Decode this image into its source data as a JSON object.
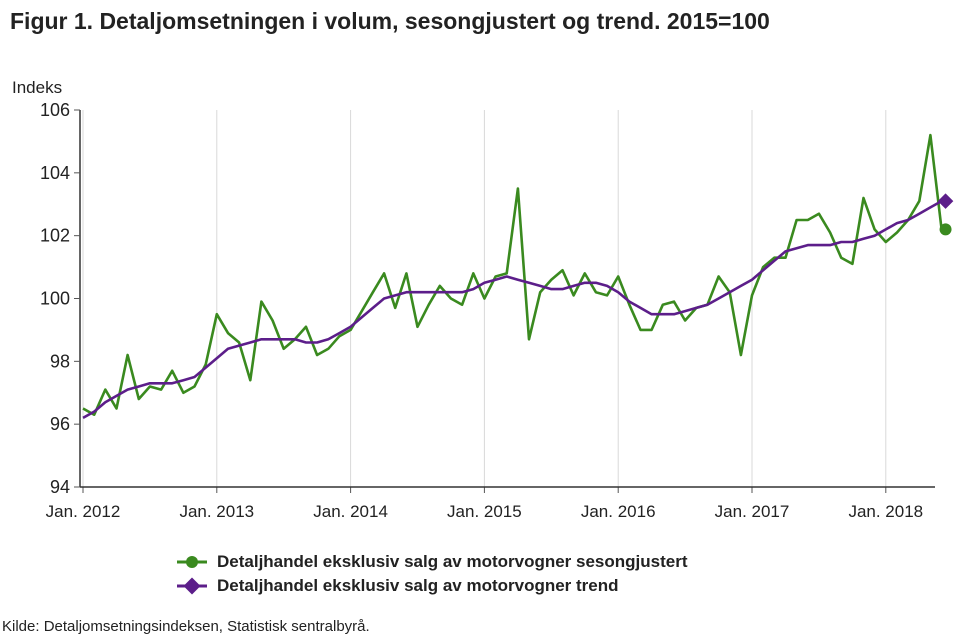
{
  "chart_data": {
    "type": "line",
    "title": "Figur 1. Detaljomsetningen i volum, sesongjustert og trend. 2015=100",
    "ylabel": "Indeks",
    "ylim": [
      94,
      106
    ],
    "yticks": [
      94,
      96,
      98,
      100,
      102,
      104,
      106
    ],
    "xticks": [
      "Jan. 2012",
      "Jan. 2013",
      "Jan. 2014",
      "Jan. 2015",
      "Jan. 2016",
      "Jan. 2017",
      "Jan. 2018"
    ],
    "grid": "vertical",
    "legend_position": "bottom",
    "x_start": "2012-01",
    "series": [
      {
        "name": "Detaljhandel eksklusiv salg av motorvogner sesongjustert",
        "color": "#3a8a1f",
        "values": [
          96.5,
          96.3,
          97.1,
          96.5,
          98.2,
          96.8,
          97.2,
          97.1,
          97.7,
          97.0,
          97.2,
          97.9,
          99.5,
          98.9,
          98.6,
          97.4,
          99.9,
          99.3,
          98.4,
          98.7,
          99.1,
          98.2,
          98.4,
          98.8,
          99.0,
          99.6,
          100.2,
          100.8,
          99.7,
          100.8,
          99.1,
          99.8,
          100.4,
          100.0,
          99.8,
          100.8,
          100.0,
          100.7,
          100.8,
          103.5,
          98.7,
          100.2,
          100.6,
          100.9,
          100.1,
          100.8,
          100.2,
          100.1,
          100.7,
          99.8,
          99.0,
          99.0,
          99.8,
          99.9,
          99.3,
          99.7,
          99.8,
          100.7,
          100.2,
          98.2,
          100.1,
          101.0,
          101.3,
          101.3,
          102.5,
          102.5,
          102.7,
          102.1,
          101.3,
          101.1,
          103.2,
          102.2,
          101.8,
          102.1,
          102.5,
          103.1,
          105.2,
          102.2
        ],
        "last_point_marker": true
      },
      {
        "name": "Detaljhandel eksklusiv salg av motorvogner trend",
        "color": "#5c1e8a",
        "values": [
          96.2,
          96.4,
          96.7,
          96.9,
          97.1,
          97.2,
          97.3,
          97.3,
          97.3,
          97.4,
          97.5,
          97.8,
          98.1,
          98.4,
          98.5,
          98.6,
          98.7,
          98.7,
          98.7,
          98.7,
          98.6,
          98.6,
          98.7,
          98.9,
          99.1,
          99.4,
          99.7,
          100.0,
          100.1,
          100.2,
          100.2,
          100.2,
          100.2,
          100.2,
          100.2,
          100.3,
          100.5,
          100.6,
          100.7,
          100.6,
          100.5,
          100.4,
          100.3,
          100.3,
          100.4,
          100.5,
          100.5,
          100.4,
          100.2,
          99.9,
          99.7,
          99.5,
          99.5,
          99.5,
          99.6,
          99.7,
          99.8,
          100.0,
          100.2,
          100.4,
          100.6,
          100.9,
          101.2,
          101.5,
          101.6,
          101.7,
          101.7,
          101.7,
          101.8,
          101.8,
          101.9,
          102.0,
          102.2,
          102.4,
          102.5,
          102.7,
          102.9,
          103.1
        ],
        "last_point_marker": true
      }
    ],
    "source": "Kilde: Detaljomsetningsindeksen, Statistisk sentralbyrå."
  }
}
